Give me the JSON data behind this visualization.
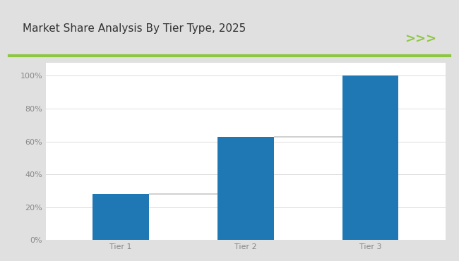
{
  "title": "Market Share Analysis By Tier Type, 2025",
  "categories": [
    "Tier 1",
    "Tier 2",
    "Tier 3"
  ],
  "values": [
    28,
    63,
    100
  ],
  "bar_color": "#1F77B4",
  "bar_width": 0.45,
  "ylim": [
    0,
    108
  ],
  "yticks": [
    0,
    20,
    40,
    60,
    80,
    100
  ],
  "ytick_labels": [
    "0%",
    "20%",
    "40%",
    "60%",
    "80%",
    "100%"
  ],
  "connector_color": "#c8c8c8",
  "outer_bg_color": "#e0e0e0",
  "panel_bg_color": "#ffffff",
  "plot_bg_color": "#ffffff",
  "title_fontsize": 11,
  "tick_fontsize": 8,
  "green_line_color": "#8dc63f",
  "chevron_color": "#8dc63f",
  "chevron_text": ">>>",
  "title_color": "#333333",
  "tick_color": "#888888"
}
